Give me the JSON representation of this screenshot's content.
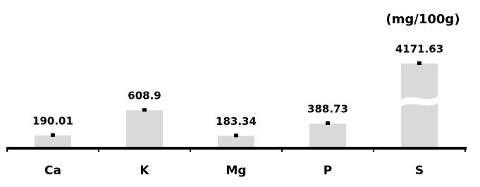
{
  "chart_data": {
    "type": "bar",
    "unit_label": "(mg/100g)",
    "categories": [
      "Ca",
      "K",
      "Mg",
      "P",
      "S"
    ],
    "values": [
      190.01,
      608.9,
      183.34,
      388.73,
      4171.63
    ],
    "color": "#d9d9d9"
  }
}
